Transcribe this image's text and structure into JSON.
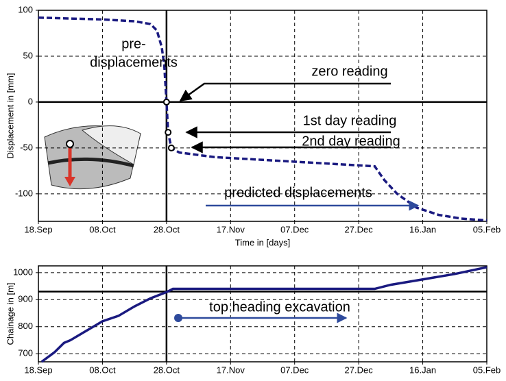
{
  "chart_data": [
    {
      "type": "line",
      "ylabel": "Displacement in [mm]",
      "xlabel": "Time in [days]",
      "xlim": [
        0,
        140
      ],
      "ylim": [
        -130,
        100
      ],
      "xticks": [
        {
          "value": 0,
          "label": "18.Sep"
        },
        {
          "value": 20,
          "label": "08.Oct"
        },
        {
          "value": 40,
          "label": "28.Oct"
        },
        {
          "value": 60,
          "label": "17.Nov"
        },
        {
          "value": 80,
          "label": "07.Dec"
        },
        {
          "value": 100,
          "label": "27.Dec"
        },
        {
          "value": 120,
          "label": "16.Jan"
        },
        {
          "value": 140,
          "label": "05.Feb"
        }
      ],
      "yticks": [
        100,
        50,
        0,
        -50,
        -100
      ],
      "grid": true,
      "hline": 0,
      "vline": 40,
      "series": [
        {
          "color": "#1a1a80",
          "x": [
            0,
            20,
            30,
            35,
            37,
            38.5,
            39.3,
            40,
            40.5,
            41.5,
            44,
            55,
            80,
            95,
            105,
            108,
            112,
            118,
            125,
            132,
            140
          ],
          "values": [
            92,
            90,
            88,
            85,
            78,
            60,
            40,
            0,
            -33,
            -50,
            -55,
            -60,
            -65,
            -68,
            -70,
            -85,
            -100,
            -115,
            -123,
            -127,
            -129
          ]
        }
      ],
      "markers": {
        "x": [
          40,
          40.5,
          41.5
        ],
        "values": [
          0,
          -33,
          -50
        ]
      },
      "annotations": [
        "pre-",
        "displacements",
        "zero reading",
        "1st day reading",
        "2nd day reading",
        "predicted displacements"
      ]
    },
    {
      "type": "line",
      "ylabel": "Chainage in [m]",
      "xlim": [
        0,
        140
      ],
      "ylim": [
        670,
        1025
      ],
      "xticks": [
        {
          "value": 0,
          "label": "18.Sep"
        },
        {
          "value": 20,
          "label": "08.Oct"
        },
        {
          "value": 40,
          "label": "28.Oct"
        },
        {
          "value": 60,
          "label": "17.Nov"
        },
        {
          "value": 80,
          "label": "07.Dec"
        },
        {
          "value": 100,
          "label": "27.Dec"
        },
        {
          "value": 120,
          "label": "16.Jan"
        },
        {
          "value": 140,
          "label": "05.Feb"
        }
      ],
      "yticks": [
        1000,
        900,
        800,
        700
      ],
      "grid": true,
      "hline": 930,
      "vline": 40,
      "series": [
        {
          "color": "#1a1a80",
          "x": [
            1,
            5,
            8,
            10,
            15,
            20,
            25,
            30,
            35,
            40,
            42,
            60,
            80,
            105,
            110,
            120,
            130,
            140
          ],
          "values": [
            670,
            705,
            740,
            750,
            785,
            820,
            840,
            875,
            905,
            928,
            940,
            940,
            940,
            940,
            955,
            975,
            995,
            1020
          ]
        }
      ],
      "annotations": [
        "top heading excavation"
      ]
    }
  ]
}
